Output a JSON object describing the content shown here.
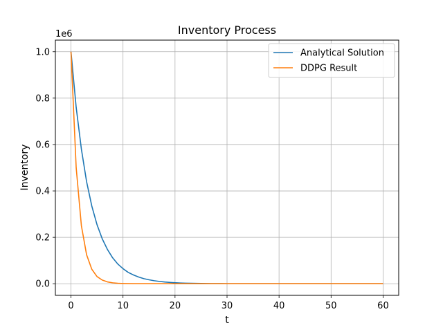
{
  "chart_data": {
    "type": "line",
    "title": "Inventory Process",
    "xlabel": "t",
    "ylabel": "Inventory",
    "y_offset_text": "1e6",
    "xlim": [
      -3,
      63
    ],
    "ylim": [
      -0.05,
      1.05
    ],
    "xticks": [
      0,
      10,
      20,
      30,
      40,
      50,
      60
    ],
    "yticks": [
      0.0,
      0.2,
      0.4,
      0.6,
      0.8,
      1.0
    ],
    "xtick_labels": [
      "0",
      "10",
      "20",
      "30",
      "40",
      "50",
      "60"
    ],
    "ytick_labels": [
      "0.0",
      "0.2",
      "0.4",
      "0.6",
      "0.8",
      "1.0"
    ],
    "grid": true,
    "legend_position": "upper right",
    "x": [
      0,
      1,
      2,
      3,
      4,
      5,
      6,
      7,
      8,
      9,
      10,
      11,
      12,
      13,
      14,
      15,
      16,
      17,
      18,
      19,
      20,
      21,
      22,
      23,
      24,
      25,
      26,
      27,
      28,
      29,
      30,
      31,
      32,
      33,
      34,
      35,
      36,
      37,
      38,
      39,
      40,
      41,
      42,
      43,
      44,
      45,
      46,
      47,
      48,
      49,
      50,
      51,
      52,
      53,
      54,
      55,
      56,
      57,
      58,
      59,
      60
    ],
    "series": [
      {
        "name": "Analytical Solution",
        "color": "#1f77b4",
        "values": [
          1.0,
          0.76,
          0.58,
          0.44,
          0.335,
          0.255,
          0.194,
          0.148,
          0.112,
          0.085,
          0.065,
          0.049,
          0.038,
          0.029,
          0.022,
          0.017,
          0.013,
          0.01,
          0.0075,
          0.0057,
          0.0043,
          0.0033,
          0.0025,
          0.0019,
          0.0015,
          0.0011,
          0.0008,
          0.0006,
          0.0005,
          0.0004,
          0.0003,
          0.0002,
          0.0002,
          0.0001,
          0.0001,
          0.0001,
          0.0001,
          0,
          0,
          0,
          0,
          0,
          0,
          0,
          0,
          0,
          0,
          0,
          0,
          0,
          0,
          0,
          0,
          0,
          0,
          0,
          0,
          0,
          0,
          0,
          0
        ]
      },
      {
        "name": "DDPG Result",
        "color": "#ff7f0e",
        "values": [
          1.0,
          0.5,
          0.25,
          0.125,
          0.0625,
          0.031,
          0.016,
          0.008,
          0.004,
          0.002,
          0.001,
          0.0005,
          0.0002,
          0.0001,
          0.0001,
          0,
          0,
          0,
          0,
          0,
          0,
          0,
          0,
          0,
          0,
          0,
          0,
          0,
          0,
          0,
          0,
          0,
          0,
          0,
          0,
          0,
          0,
          0,
          0,
          0,
          0,
          0,
          0,
          0,
          0,
          0,
          0,
          0,
          0,
          0,
          0,
          0,
          0,
          0,
          0,
          0,
          0,
          0,
          0,
          0,
          0
        ]
      }
    ]
  }
}
